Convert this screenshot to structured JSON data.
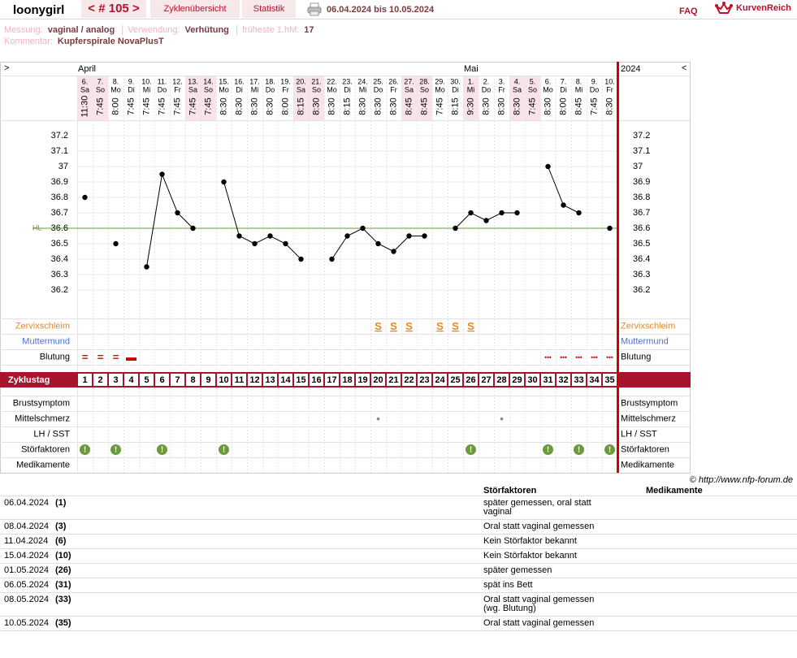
{
  "header": {
    "user": "loonygirl",
    "cycle": "< # 105 >",
    "tabs": [
      "Zyklenübersicht",
      "Statistik"
    ],
    "range": "06.04.2024 bis 10.05.2024",
    "faq": "FAQ",
    "logo": "KurvenReich"
  },
  "info": {
    "measure_label": "Messung:",
    "measure": "vaginal / analog",
    "use_label": "Verwendung:",
    "use": "Verhütung",
    "hm_label": "früheste 1.hM:",
    "hm": "17",
    "comment_label": "Kommentar:",
    "comment": "Kupferspirale NovaPlusT"
  },
  "grid": {
    "nav_left": ">",
    "nav_right": "<",
    "year": "2024",
    "months": [
      "April",
      null,
      null,
      null,
      null,
      null,
      null,
      null,
      null,
      null,
      null,
      null,
      null,
      null,
      null,
      null,
      null,
      null,
      null,
      null,
      null,
      null,
      null,
      null,
      null,
      "Mai",
      null,
      null,
      null,
      null,
      null,
      null,
      null,
      null,
      null
    ],
    "dates": [
      "6.",
      "7.",
      "8.",
      "9.",
      "10.",
      "11.",
      "12.",
      "13.",
      "14.",
      "15.",
      "16.",
      "17.",
      "18.",
      "19.",
      "20.",
      "21.",
      "22.",
      "23.",
      "24.",
      "25.",
      "26.",
      "27.",
      "28.",
      "29.",
      "30.",
      "1.",
      "2.",
      "3.",
      "4.",
      "5.",
      "6.",
      "7.",
      "8.",
      "9.",
      "10."
    ],
    "weekdays": [
      "Sa",
      "So",
      "Mo",
      "Di",
      "Mi",
      "Do",
      "Fr",
      "Sa",
      "So",
      "Mo",
      "Di",
      "Mi",
      "Do",
      "Fr",
      "Sa",
      "So",
      "Mo",
      "Di",
      "Mi",
      "Do",
      "Fr",
      "Sa",
      "So",
      "Mo",
      "Di",
      "Mi",
      "Do",
      "Fr",
      "Sa",
      "So",
      "Mo",
      "Di",
      "Mi",
      "Do",
      "Fr"
    ],
    "times": [
      "11:30",
      "7:45",
      "8:00",
      "7:45",
      "7:45",
      "7:45",
      "7:45",
      "7:45",
      "7:45",
      "8:30",
      "8:30",
      "8:30",
      "8:30",
      "8:00",
      "8:15",
      "8:30",
      "8:30",
      "8:15",
      "8:30",
      "8:30",
      "8:30",
      "8:45",
      "8:45",
      "7:45",
      "8:15",
      "9:30",
      "8:30",
      "8:30",
      "8:30",
      "7:45",
      "8:30",
      "8:00",
      "8:45",
      "7:45",
      "8:30"
    ],
    "highlight": [
      true,
      true,
      false,
      false,
      false,
      false,
      false,
      true,
      true,
      false,
      false,
      false,
      false,
      false,
      true,
      true,
      false,
      false,
      false,
      false,
      false,
      true,
      true,
      false,
      false,
      true,
      false,
      false,
      true,
      true,
      false,
      false,
      false,
      false,
      false
    ],
    "cycle_label": "Zyklustag",
    "cycle_days": [
      1,
      2,
      3,
      4,
      5,
      6,
      7,
      8,
      9,
      10,
      11,
      12,
      13,
      14,
      15,
      16,
      17,
      18,
      19,
      20,
      21,
      22,
      23,
      24,
      25,
      26,
      27,
      28,
      29,
      30,
      31,
      32,
      33,
      34,
      35
    ],
    "top_rows": [
      {
        "label": "Zervixschleim",
        "color": "#e8891c",
        "mark_color": "#e8891c",
        "marks": [
          null,
          null,
          null,
          null,
          null,
          null,
          null,
          null,
          null,
          null,
          null,
          null,
          null,
          null,
          null,
          null,
          null,
          null,
          null,
          "S",
          "S",
          "S",
          null,
          "S",
          "S",
          "S",
          null,
          null,
          null,
          null,
          null,
          null,
          null,
          null,
          null
        ]
      },
      {
        "label": "Muttermund",
        "color": "#4a6fd0",
        "mark_color": "#4a6fd0",
        "marks": [
          null,
          null,
          null,
          null,
          null,
          null,
          null,
          null,
          null,
          null,
          null,
          null,
          null,
          null,
          null,
          null,
          null,
          null,
          null,
          null,
          null,
          null,
          null,
          null,
          null,
          null,
          null,
          null,
          null,
          null,
          null,
          null,
          null,
          null,
          null
        ]
      },
      {
        "label": "Blutung",
        "color": "#000000",
        "mark_color": "#d40000",
        "marks": [
          "=",
          "=",
          "=",
          "▬",
          null,
          null,
          null,
          null,
          null,
          null,
          null,
          null,
          null,
          null,
          null,
          null,
          null,
          null,
          null,
          null,
          null,
          null,
          null,
          null,
          null,
          null,
          null,
          null,
          null,
          null,
          "•••",
          "•••",
          "•••",
          "•••",
          "•••"
        ]
      }
    ],
    "bottom_rows": [
      {
        "label": "Brustsymptom",
        "color": "#000000",
        "mark_color": "#888888",
        "marks": [
          null,
          null,
          null,
          null,
          null,
          null,
          null,
          null,
          null,
          null,
          null,
          null,
          null,
          null,
          null,
          null,
          null,
          null,
          null,
          null,
          null,
          null,
          null,
          null,
          null,
          null,
          null,
          null,
          null,
          null,
          null,
          null,
          null,
          null,
          null
        ]
      },
      {
        "label": "Mittelschmerz",
        "color": "#000000",
        "mark_color": "#888888",
        "marks": [
          null,
          null,
          null,
          null,
          null,
          null,
          null,
          null,
          null,
          null,
          null,
          null,
          null,
          null,
          null,
          null,
          null,
          null,
          null,
          "•",
          null,
          null,
          null,
          null,
          null,
          null,
          null,
          "•",
          null,
          null,
          null,
          null,
          null,
          null,
          null
        ]
      },
      {
        "label": "LH / SST",
        "color": "#000000",
        "mark_color": "#888888",
        "marks": [
          null,
          null,
          null,
          null,
          null,
          null,
          null,
          null,
          null,
          null,
          null,
          null,
          null,
          null,
          null,
          null,
          null,
          null,
          null,
          null,
          null,
          null,
          null,
          null,
          null,
          null,
          null,
          null,
          null,
          null,
          null,
          null,
          null,
          null,
          null
        ]
      },
      {
        "label": "Störfaktoren",
        "color": "#000000",
        "mark_color": "#6a9a3a",
        "marks": [
          "!",
          null,
          "!",
          null,
          null,
          "!",
          null,
          null,
          null,
          "!",
          null,
          null,
          null,
          null,
          null,
          null,
          null,
          null,
          null,
          null,
          null,
          null,
          null,
          null,
          null,
          "!",
          null,
          null,
          null,
          null,
          "!",
          null,
          "!",
          null,
          "!"
        ]
      },
      {
        "label": "Medikamente",
        "color": "#000000",
        "mark_color": "#888888",
        "marks": [
          null,
          null,
          null,
          null,
          null,
          null,
          null,
          null,
          null,
          null,
          null,
          null,
          null,
          null,
          null,
          null,
          null,
          null,
          null,
          null,
          null,
          null,
          null,
          null,
          null,
          null,
          null,
          null,
          null,
          null,
          null,
          null,
          null,
          null,
          null
        ]
      }
    ]
  },
  "chart_data": {
    "type": "line",
    "color": "#000000",
    "ylim": [
      36.1,
      37.3
    ],
    "yticks": [
      36.2,
      36.3,
      36.4,
      36.5,
      36.6,
      36.7,
      36.8,
      36.9,
      37,
      37.1,
      37.2
    ],
    "grid": true,
    "values": [
      36.8,
      null,
      36.5,
      null,
      36.35,
      36.95,
      36.7,
      36.6,
      null,
      36.9,
      36.55,
      36.5,
      36.55,
      36.5,
      36.4,
      null,
      36.4,
      36.55,
      36.6,
      36.5,
      36.45,
      36.55,
      36.55,
      null,
      36.6,
      36.7,
      36.65,
      36.7,
      36.7,
      null,
      37,
      36.75,
      36.7,
      null,
      36.6
    ],
    "hl": {
      "label": "HL",
      "value": 36.6,
      "color": "#6a9a3a"
    }
  },
  "footer": {
    "copyright": "© http://www.nfp-forum.de"
  },
  "notes": {
    "headers": [
      "Störfaktoren",
      "Medikamente"
    ],
    "rows": [
      {
        "date": "06.04.2024",
        "day": "(1)",
        "text": "später gemessen, oral statt vaginal"
      },
      {
        "date": "08.04.2024",
        "day": "(3)",
        "text": "Oral statt vaginal gemessen"
      },
      {
        "date": "11.04.2024",
        "day": "(6)",
        "text": "Kein Störfaktor bekannt"
      },
      {
        "date": "15.04.2024",
        "day": "(10)",
        "text": "Kein Störfaktor bekannt"
      },
      {
        "date": "01.05.2024",
        "day": "(26)",
        "text": "später gemessen"
      },
      {
        "date": "06.05.2024",
        "day": "(31)",
        "text": "spät ins Bett"
      },
      {
        "date": "08.05.2024",
        "day": "(33)",
        "text": "Oral statt vaginal gemessen (wg. Blutung)"
      },
      {
        "date": "10.05.2024",
        "day": "(35)",
        "text": "Oral statt vaginal gemessen"
      }
    ]
  }
}
